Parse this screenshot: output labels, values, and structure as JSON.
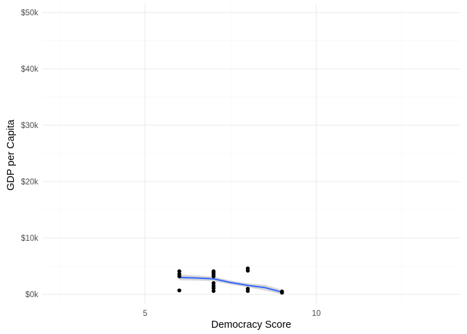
{
  "chart_data": {
    "type": "scatter",
    "title": "",
    "xlabel": "Democracy Score",
    "ylabel": "GDP per Capita",
    "xlim": [
      2.0,
      14.2
    ],
    "ylim": [
      -1600,
      51600
    ],
    "x_ticks": [
      5,
      10
    ],
    "x_tick_labels": [
      "5",
      "10"
    ],
    "x_minor_ticks": [
      2.5,
      7.5,
      12.5
    ],
    "y_ticks": [
      0,
      10000,
      20000,
      30000,
      40000,
      50000
    ],
    "y_tick_labels": [
      "$0k",
      "$10k",
      "$20k",
      "$30k",
      "$40k",
      "$50k"
    ],
    "y_minor_ticks": [
      5000,
      15000,
      25000,
      35000,
      45000
    ],
    "grid": true,
    "legend": "none",
    "colors": {
      "points": "#000000",
      "smooth": "#3366ff",
      "band": "#999999"
    },
    "points": [
      {
        "x": 6,
        "y": 4100
      },
      {
        "x": 6,
        "y": 3600
      },
      {
        "x": 6,
        "y": 3200
      },
      {
        "x": 6,
        "y": 700
      },
      {
        "x": 7,
        "y": 4100
      },
      {
        "x": 7,
        "y": 3800
      },
      {
        "x": 7,
        "y": 3500
      },
      {
        "x": 7,
        "y": 3200
      },
      {
        "x": 7,
        "y": 2000
      },
      {
        "x": 7,
        "y": 1500
      },
      {
        "x": 7,
        "y": 1100
      },
      {
        "x": 7,
        "y": 600
      },
      {
        "x": 8,
        "y": 4600
      },
      {
        "x": 8,
        "y": 4200
      },
      {
        "x": 8,
        "y": 1000
      },
      {
        "x": 8,
        "y": 600
      },
      {
        "x": 9,
        "y": 500
      },
      {
        "x": 9,
        "y": 300
      }
    ],
    "smooth": {
      "x": [
        6.0,
        6.5,
        7.0,
        7.5,
        8.0,
        8.5,
        9.0
      ],
      "y": [
        3000,
        2900,
        2750,
        2100,
        1600,
        1200,
        400
      ],
      "lower": [
        2500,
        2450,
        2350,
        1750,
        1250,
        700,
        0
      ],
      "upper": [
        3500,
        3350,
        3150,
        2450,
        1950,
        1700,
        800
      ]
    }
  }
}
